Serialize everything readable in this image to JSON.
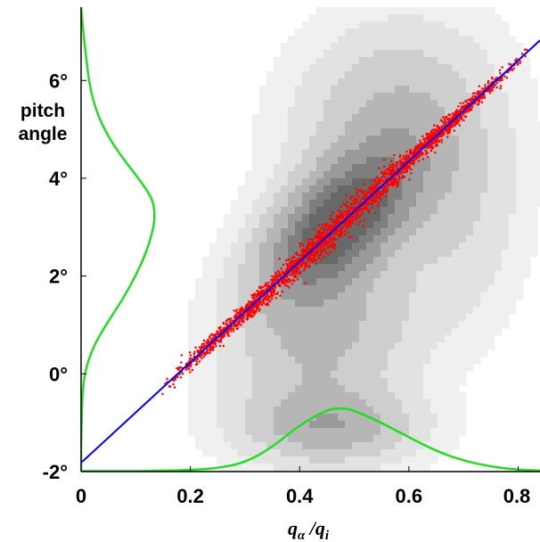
{
  "chart_data": {
    "type": "scatter",
    "title": "",
    "xlabel": "q_α /q_i",
    "xlabel_parts": {
      "q": "q",
      "alpha": "α",
      "slash": " /",
      "i": "i"
    },
    "ylabel_lines": [
      "pitch",
      "angle"
    ],
    "xlim": [
      0,
      0.84
    ],
    "ylim": [
      -2,
      7.5
    ],
    "x_ticks": [
      0,
      0.2,
      0.4,
      0.6,
      0.8
    ],
    "x_tick_labels": [
      "0",
      "0.2",
      "0.4",
      "0.6",
      "0.8"
    ],
    "y_ticks": [
      -2,
      0,
      2,
      4,
      6
    ],
    "y_tick_labels": [
      "-2°",
      "0°",
      "2°",
      "4°",
      "6°"
    ],
    "grid": false,
    "series": [
      {
        "kind": "scatter",
        "color": "#ff0000",
        "points_along_line": {
          "x_start": 0.14,
          "x_end": 0.82,
          "scatter_sd": 0.05
        }
      },
      {
        "kind": "fit-line",
        "color": "#0000ff",
        "x": [
          0.0,
          0.84
        ],
        "y": [
          -1.82,
          6.82
        ]
      },
      {
        "kind": "marginal-histogram-y",
        "color": "#22dd22",
        "y": [
          -2.0,
          -1.5,
          -1.0,
          -0.5,
          0.0,
          0.5,
          1.0,
          1.5,
          2.0,
          2.5,
          3.0,
          3.3,
          3.6,
          4.0,
          4.5,
          5.0,
          5.5,
          6.0,
          6.5,
          7.0,
          7.5
        ],
        "x": [
          0.0,
          0.0,
          0.001,
          0.002,
          0.006,
          0.02,
          0.045,
          0.075,
          0.1,
          0.12,
          0.133,
          0.135,
          0.13,
          0.105,
          0.07,
          0.042,
          0.024,
          0.014,
          0.009,
          0.004,
          0.0
        ]
      },
      {
        "kind": "marginal-histogram-x",
        "color": "#22dd22",
        "x": [
          0.0,
          0.1,
          0.15,
          0.2,
          0.25,
          0.3,
          0.35,
          0.4,
          0.45,
          0.48,
          0.5,
          0.55,
          0.6,
          0.65,
          0.7,
          0.75,
          0.8,
          0.84
        ],
        "y": [
          -1.99,
          -1.99,
          -1.98,
          -1.97,
          -1.93,
          -1.82,
          -1.5,
          -1.05,
          -0.73,
          -0.7,
          -0.75,
          -1.0,
          -1.3,
          -1.58,
          -1.78,
          -1.9,
          -1.96,
          -1.98
        ]
      },
      {
        "kind": "density-contours",
        "colors": [
          "#f0f0f0",
          "#e2e2e2",
          "#cecece",
          "#b6b6b6",
          "#9a9a9a",
          "#7e7e7e",
          "#686868"
        ]
      }
    ]
  }
}
